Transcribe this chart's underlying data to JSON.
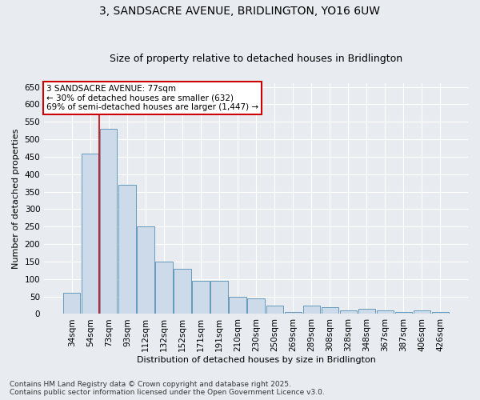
{
  "title_line1": "3, SANDSACRE AVENUE, BRIDLINGTON, YO16 6UW",
  "title_line2": "Size of property relative to detached houses in Bridlington",
  "xlabel": "Distribution of detached houses by size in Bridlington",
  "ylabel": "Number of detached properties",
  "categories": [
    "34sqm",
    "54sqm",
    "73sqm",
    "93sqm",
    "112sqm",
    "132sqm",
    "152sqm",
    "171sqm",
    "191sqm",
    "210sqm",
    "230sqm",
    "250sqm",
    "269sqm",
    "289sqm",
    "308sqm",
    "328sqm",
    "348sqm",
    "367sqm",
    "387sqm",
    "406sqm",
    "426sqm"
  ],
  "values": [
    60,
    460,
    530,
    370,
    250,
    150,
    130,
    95,
    95,
    50,
    45,
    25,
    5,
    25,
    20,
    10,
    15,
    10,
    5,
    10,
    5
  ],
  "bar_color": "#ccdaea",
  "bar_edge_color": "#6699bb",
  "vline_color": "#cc0000",
  "vline_position": 2,
  "annotation_title": "3 SANDSACRE AVENUE: 77sqm",
  "annotation_line2": "← 30% of detached houses are smaller (632)",
  "annotation_line3": "69% of semi-detached houses are larger (1,447) →",
  "annotation_box_facecolor": "white",
  "annotation_box_edgecolor": "#cc0000",
  "background_color": "#e8ecf0",
  "ylim": [
    0,
    660
  ],
  "yticks": [
    0,
    50,
    100,
    150,
    200,
    250,
    300,
    350,
    400,
    450,
    500,
    550,
    600,
    650
  ],
  "grid_color": "#ffffff",
  "title_fontsize": 10,
  "subtitle_fontsize": 9,
  "axis_label_fontsize": 8,
  "tick_fontsize": 7.5,
  "annotation_fontsize": 7.5,
  "footer_fontsize": 6.5,
  "footer_line1": "Contains HM Land Registry data © Crown copyright and database right 2025.",
  "footer_line2": "Contains public sector information licensed under the Open Government Licence v3.0."
}
